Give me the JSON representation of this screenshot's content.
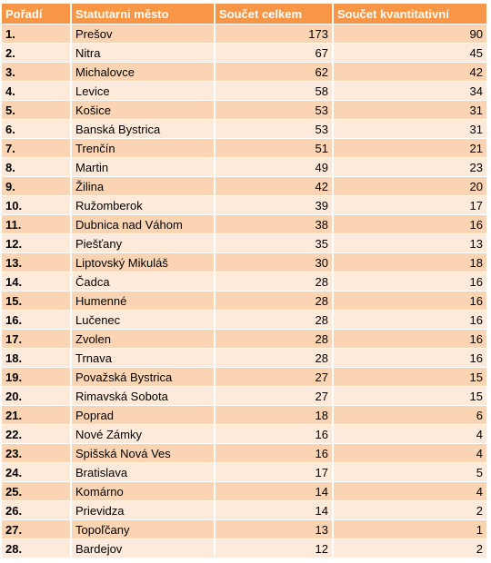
{
  "table": {
    "headers": [
      "Pořadí",
      "Statutarni město",
      "Součet celkem",
      "Součet kvantitativní"
    ],
    "rows": [
      [
        "1.",
        "Prešov",
        "173",
        "90"
      ],
      [
        "2.",
        "Nitra",
        "67",
        "45"
      ],
      [
        "3.",
        "Michalovce",
        "62",
        "42"
      ],
      [
        "4.",
        "Levice",
        "58",
        "34"
      ],
      [
        "5.",
        "Košice",
        "53",
        "31"
      ],
      [
        "6.",
        "Banská Bystrica",
        "53",
        "31"
      ],
      [
        "7.",
        "Trenčín",
        "51",
        "21"
      ],
      [
        "8.",
        "Martin",
        "49",
        "23"
      ],
      [
        "9.",
        "Žilina",
        "42",
        "20"
      ],
      [
        "10.",
        "Ružomberok",
        "39",
        "17"
      ],
      [
        "11.",
        "Dubnica nad Váhom",
        "38",
        "16"
      ],
      [
        "12.",
        "Piešťany",
        "35",
        "13"
      ],
      [
        "13.",
        "Liptovský Mikuláš",
        "30",
        "18"
      ],
      [
        "14.",
        "Čadca",
        "28",
        "16"
      ],
      [
        "15.",
        "Humenné",
        "28",
        "16"
      ],
      [
        "16.",
        "Lučenec",
        "28",
        "16"
      ],
      [
        "17.",
        "Zvolen",
        "28",
        "16"
      ],
      [
        "18.",
        "Trnava",
        "28",
        "16"
      ],
      [
        "19.",
        "Považská Bystrica",
        "27",
        "15"
      ],
      [
        "20.",
        "Rimavská Sobota",
        "27",
        "15"
      ],
      [
        "21.",
        "Poprad",
        "18",
        "6"
      ],
      [
        "22.",
        "Nové Zámky",
        "16",
        "4"
      ],
      [
        "23.",
        "Spišská Nová Ves",
        "16",
        "4"
      ],
      [
        "24.",
        "Bratislava",
        "17",
        "5"
      ],
      [
        "25.",
        "Komárno",
        "14",
        "4"
      ],
      [
        "26.",
        "Prievidza",
        "14",
        "2"
      ],
      [
        "27.",
        "Topoľčany",
        "13",
        "1"
      ],
      [
        "28.",
        "Bardejov",
        "12",
        "2"
      ]
    ]
  },
  "colors": {
    "header": "#f79646",
    "row_odd": "#fbd4b4",
    "row_even": "#fdeada"
  }
}
